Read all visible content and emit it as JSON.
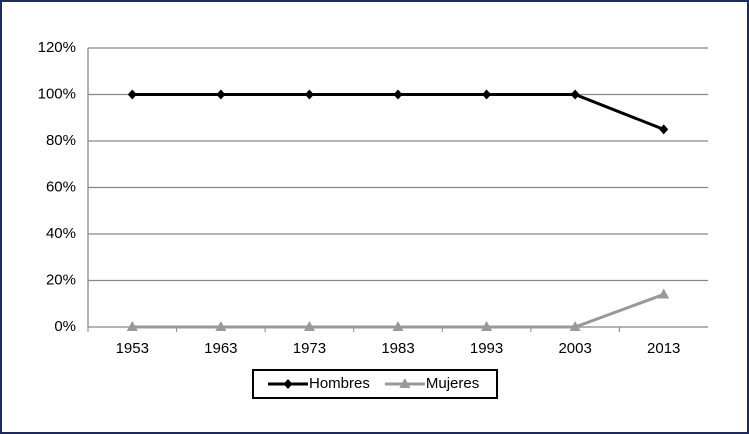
{
  "chart_data": {
    "type": "line",
    "categories": [
      "1953",
      "1963",
      "1973",
      "1983",
      "1993",
      "2003",
      "2013"
    ],
    "series": [
      {
        "name": "Hombres",
        "color": "#000000",
        "marker": "diamond",
        "values": [
          100,
          100,
          100,
          100,
          100,
          100,
          85
        ]
      },
      {
        "name": "Mujeres",
        "color": "#999999",
        "marker": "triangle",
        "values": [
          0,
          0,
          0,
          0,
          0,
          0,
          14
        ]
      }
    ],
    "ylim": [
      0,
      120
    ],
    "yticks": [
      {
        "value": 0,
        "label": "0%"
      },
      {
        "value": 20,
        "label": "20%"
      },
      {
        "value": 40,
        "label": "40%"
      },
      {
        "value": 60,
        "label": "60%"
      },
      {
        "value": 80,
        "label": "80%"
      },
      {
        "value": 100,
        "label": "100%"
      },
      {
        "value": 120,
        "label": "120%"
      }
    ],
    "grid": true,
    "legend": "bottom"
  }
}
